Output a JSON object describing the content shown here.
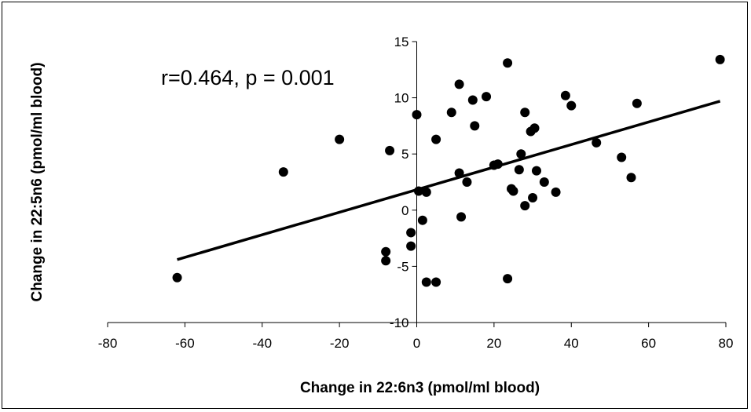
{
  "chart_data": {
    "type": "scatter",
    "xlabel": "Change in 22:6n3 (pmol/ml blood)",
    "ylabel": "Change in 22:5n6 (pmol/ml blood)",
    "annotation": "r=0.464, p = 0.001",
    "xlim": [
      -80,
      80
    ],
    "ylim": [
      -10,
      15
    ],
    "xticks": [
      -80,
      -60,
      -40,
      -20,
      0,
      20,
      40,
      60,
      80
    ],
    "yticks": [
      -10,
      -5,
      0,
      5,
      10,
      15
    ],
    "grid": false,
    "point_color": "#000000",
    "points": [
      {
        "x": -62,
        "y": -6.0
      },
      {
        "x": -34.5,
        "y": 3.4
      },
      {
        "x": -20,
        "y": 6.3
      },
      {
        "x": -7,
        "y": 5.3
      },
      {
        "x": -8,
        "y": -3.7
      },
      {
        "x": -8,
        "y": -4.5
      },
      {
        "x": -1.5,
        "y": -2.0
      },
      {
        "x": -1.5,
        "y": -3.2
      },
      {
        "x": 0,
        "y": 8.5
      },
      {
        "x": 0.5,
        "y": 1.7
      },
      {
        "x": 1.5,
        "y": -0.9
      },
      {
        "x": 2.5,
        "y": 1.6
      },
      {
        "x": 2.5,
        "y": -6.4
      },
      {
        "x": 5,
        "y": -6.4
      },
      {
        "x": 5,
        "y": 6.3
      },
      {
        "x": 9,
        "y": 8.7
      },
      {
        "x": 11,
        "y": 11.2
      },
      {
        "x": 11,
        "y": 3.3
      },
      {
        "x": 11.5,
        "y": -0.6
      },
      {
        "x": 13,
        "y": 2.5
      },
      {
        "x": 14.5,
        "y": 9.8
      },
      {
        "x": 15,
        "y": 7.5
      },
      {
        "x": 18,
        "y": 10.1
      },
      {
        "x": 20,
        "y": 4.0
      },
      {
        "x": 21,
        "y": 4.1
      },
      {
        "x": 23.5,
        "y": 13.1
      },
      {
        "x": 23.5,
        "y": -6.1
      },
      {
        "x": 24.5,
        "y": 1.9
      },
      {
        "x": 25,
        "y": 1.7
      },
      {
        "x": 26.5,
        "y": 3.6
      },
      {
        "x": 27,
        "y": 5.0
      },
      {
        "x": 28,
        "y": 8.7
      },
      {
        "x": 28,
        "y": 0.4
      },
      {
        "x": 29.5,
        "y": 7.0
      },
      {
        "x": 30,
        "y": 1.1
      },
      {
        "x": 30.5,
        "y": 7.3
      },
      {
        "x": 31,
        "y": 3.5
      },
      {
        "x": 33,
        "y": 2.5
      },
      {
        "x": 36,
        "y": 1.6
      },
      {
        "x": 38.5,
        "y": 10.2
      },
      {
        "x": 40,
        "y": 9.3
      },
      {
        "x": 46.5,
        "y": 6.0
      },
      {
        "x": 53,
        "y": 4.7
      },
      {
        "x": 55.5,
        "y": 2.9
      },
      {
        "x": 57,
        "y": 9.5
      },
      {
        "x": 78.5,
        "y": 13.4
      }
    ],
    "trendline": {
      "x": [
        -62,
        78.5
      ],
      "y": [
        -4.4,
        9.7
      ]
    }
  }
}
